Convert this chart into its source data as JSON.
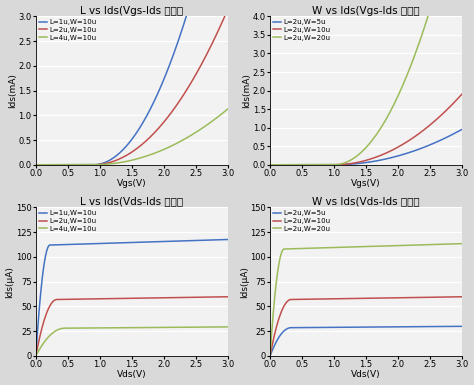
{
  "top_left": {
    "title": "L vs Ids(Vgs-Ids 特性）",
    "xlabel": "Vgs(V)",
    "ylabel": "Ids(mA)",
    "ylim": [
      0.0,
      3.0
    ],
    "yticks": [
      0.0,
      0.5,
      1.0,
      1.5,
      2.0,
      2.5,
      3.0
    ],
    "xlim": [
      0.0,
      3.0
    ],
    "xticks": [
      0.0,
      0.5,
      1.0,
      1.5,
      2.0,
      2.5,
      3.0
    ],
    "series": [
      {
        "label": "L=1u,W=10u",
        "color": "#4472C4",
        "vth": 0.9,
        "k": 1.42
      },
      {
        "label": "L=2u,W=10u",
        "color": "#C0504D",
        "vth": 0.9,
        "k": 0.71
      },
      {
        "label": "L=4u,W=10u",
        "color": "#9BBB59",
        "vth": 0.9,
        "k": 0.255
      }
    ]
  },
  "top_right": {
    "title": "W vs Ids(Vgs-Ids 特性）",
    "xlabel": "Vgs(V)",
    "ylabel": "Ids(mA)",
    "ylim": [
      0.0,
      4.0
    ],
    "yticks": [
      0.0,
      0.5,
      1.0,
      1.5,
      2.0,
      2.5,
      3.0,
      3.5,
      4.0
    ],
    "xlim": [
      0.0,
      3.0
    ],
    "xticks": [
      0.0,
      0.5,
      1.0,
      1.5,
      2.0,
      2.5,
      3.0
    ],
    "series": [
      {
        "label": "L=2u,W=5u",
        "color": "#4472C4",
        "vth": 1.0,
        "k": 0.238
      },
      {
        "label": "L=2u,W=10u",
        "color": "#C0504D",
        "vth": 1.0,
        "k": 0.475
      },
      {
        "label": "L=2u,W=20u",
        "color": "#9BBB59",
        "vth": 1.0,
        "k": 1.85
      }
    ]
  },
  "bot_left": {
    "title": "L vs Ids(Vds-Ids 特性）",
    "xlabel": "Vds(V)",
    "ylabel": "Ids(μA)",
    "ylim": [
      0,
      150
    ],
    "yticks": [
      0,
      25,
      50,
      75,
      100,
      125,
      150
    ],
    "xlim": [
      0.0,
      3.0
    ],
    "xticks": [
      0.0,
      0.5,
      1.0,
      1.5,
      2.0,
      2.5,
      3.0
    ],
    "series": [
      {
        "label": "L=1u,W=10u",
        "color": "#4472C4",
        "isat": 112.0,
        "vdsat": 0.22
      },
      {
        "label": "L=2u,W=10u",
        "color": "#C0504D",
        "isat": 57.0,
        "vdsat": 0.33
      },
      {
        "label": "L=4u,W=10u",
        "color": "#9BBB59",
        "isat": 28.0,
        "vdsat": 0.45
      }
    ]
  },
  "bot_right": {
    "title": "W vs Ids(Vds-Ids 特性）",
    "xlabel": "Vds(V)",
    "ylabel": "Ids(μA)",
    "ylim": [
      0,
      150
    ],
    "yticks": [
      0,
      25,
      50,
      75,
      100,
      125,
      150
    ],
    "xlim": [
      0.0,
      3.0
    ],
    "xticks": [
      0.0,
      0.5,
      1.0,
      1.5,
      2.0,
      2.5,
      3.0
    ],
    "series": [
      {
        "label": "L=2u,W=5u",
        "color": "#4472C4",
        "isat": 28.5,
        "vdsat": 0.33
      },
      {
        "label": "L=2u,W=10u",
        "color": "#C0504D",
        "isat": 57.0,
        "vdsat": 0.33
      },
      {
        "label": "L=2u,W=20u",
        "color": "#9BBB59",
        "isat": 108.0,
        "vdsat": 0.22
      }
    ]
  },
  "fig_bg": "#D9D9D9",
  "ax_bg": "#F2F2F2",
  "grid_color": "#FFFFFF",
  "line_width": 1.1,
  "font_size": 6.5,
  "title_font_size": 7.5
}
